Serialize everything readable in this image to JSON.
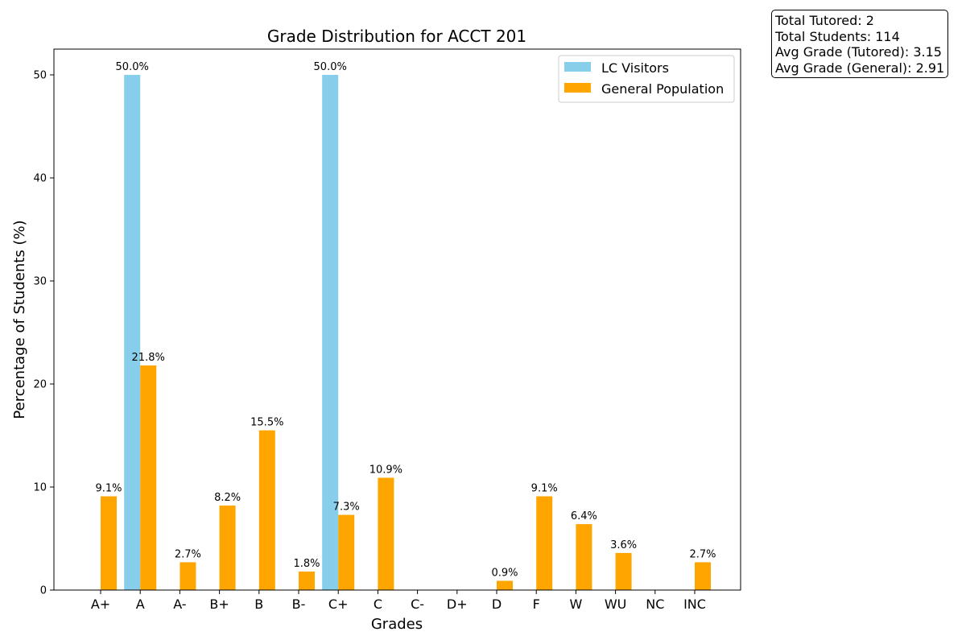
{
  "chart_data": {
    "type": "bar",
    "title": "Grade Distribution for ACCT 201",
    "xlabel": "Grades",
    "ylabel": "Percentage of Students (%)",
    "categories": [
      "A+",
      "A",
      "A-",
      "B+",
      "B",
      "B-",
      "C+",
      "C",
      "C-",
      "D+",
      "D",
      "F",
      "W",
      "WU",
      "NC",
      "INC"
    ],
    "series": [
      {
        "name": "LC Visitors",
        "color": "#87CEEB",
        "values": [
          0,
          50.0,
          0,
          0,
          0,
          0,
          50.0,
          0,
          0,
          0,
          0,
          0,
          0,
          0,
          0,
          0
        ],
        "labels": [
          "",
          "50.0%",
          "",
          "",
          "",
          "",
          "50.0%",
          "",
          "",
          "",
          "",
          "",
          "",
          "",
          "",
          ""
        ]
      },
      {
        "name": "General Population",
        "color": "#FFA500",
        "values": [
          9.1,
          21.8,
          2.7,
          8.2,
          15.5,
          1.8,
          7.3,
          10.9,
          0,
          0,
          0.9,
          9.1,
          6.4,
          3.6,
          0,
          2.7
        ],
        "labels": [
          "9.1%",
          "21.8%",
          "2.7%",
          "8.2%",
          "15.5%",
          "1.8%",
          "7.3%",
          "10.9%",
          "",
          "",
          "0.9%",
          "9.1%",
          "6.4%",
          "3.6%",
          "",
          "2.7%"
        ]
      }
    ],
    "yticks": [
      0,
      10,
      20,
      30,
      40,
      50
    ],
    "ylim": [
      0,
      52.5
    ],
    "legend_position": "upper right",
    "grid": false
  },
  "stats": {
    "total_tutored": "Total Tutored: 2",
    "total_students": "Total Students: 114",
    "avg_tutored": "Avg Grade (Tutored): 3.15",
    "avg_general": "Avg Grade (General): 2.91"
  }
}
